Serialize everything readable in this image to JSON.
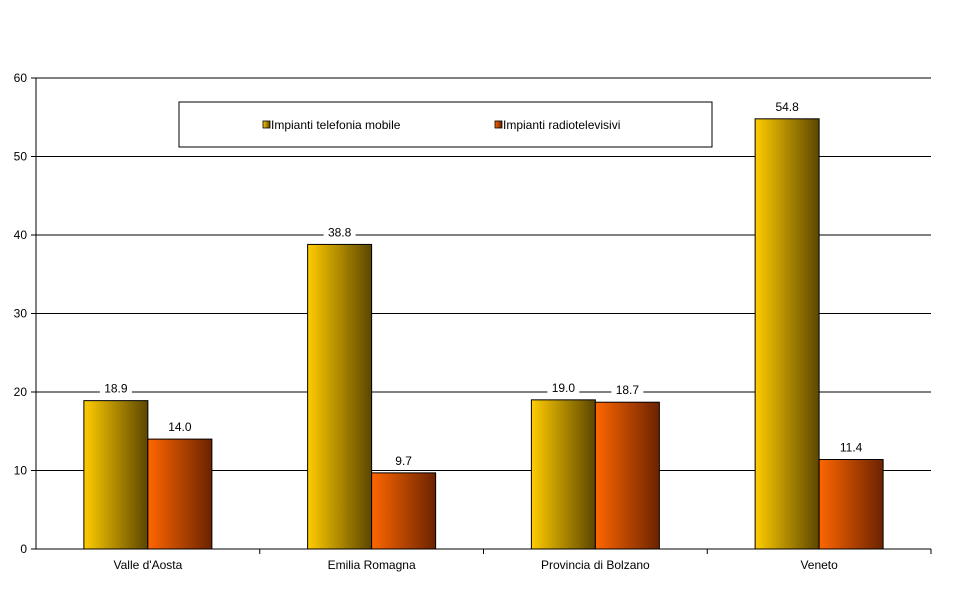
{
  "chart_data": {
    "type": "bar",
    "title": "",
    "xlabel": "",
    "ylabel": "",
    "categories": [
      "Valle d'Aosta",
      "Emilia Romagna",
      "Provincia di Bolzano",
      "Veneto"
    ],
    "series": [
      {
        "name": "Impianti telefonia mobile",
        "values": [
          18.9,
          38.8,
          19.0,
          54.8
        ],
        "value_labels": [
          "18.9",
          "38.8",
          "19.0",
          "54.8"
        ],
        "color_light": "#ffcc00",
        "color_dark": "#5c4600"
      },
      {
        "name": "Impianti radiotelevisivi",
        "values": [
          14.0,
          9.7,
          18.7,
          11.4
        ],
        "value_labels": [
          "14.0",
          "9.7",
          "18.7",
          "11.4"
        ],
        "color_light": "#ff6600",
        "color_dark": "#6b2300"
      }
    ],
    "ylim": [
      0,
      60
    ],
    "yticks": [
      0,
      10,
      20,
      30,
      40,
      50,
      60
    ],
    "ytick_labels": [
      "0",
      "10",
      "20",
      "30",
      "40",
      "50",
      "60"
    ],
    "grid": true,
    "legend": "top"
  }
}
